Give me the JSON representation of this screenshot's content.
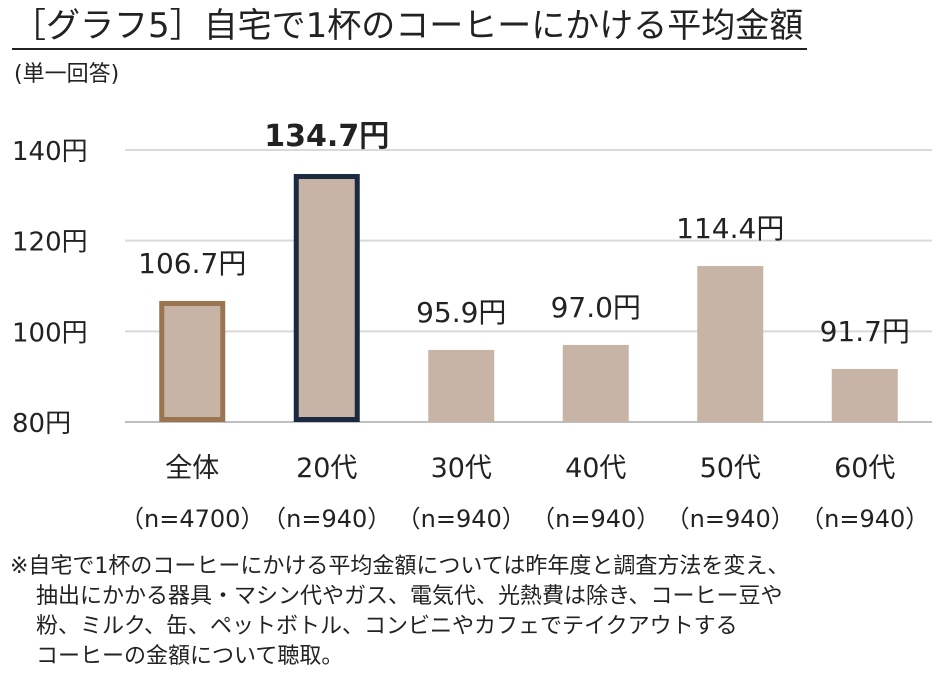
{
  "title": "［グラフ5］自宅で1杯のコーヒーにかける平均金額",
  "subtitle": "(単一回答)",
  "footnote": [
    "※自宅で1杯のコーヒーにかける平均金額については昨年度と調査方法を変え、",
    "抽出にかかる器具・マシン代やガス、電気代、光熱費は除き、コーヒー豆や",
    "粉、ミルク、缶、ペットボトル、コンビニやカフェでテイクアウトする",
    "コーヒーの金額について聴取。"
  ],
  "chart_data": {
    "type": "bar",
    "categories": [
      "全体",
      "20代",
      "30代",
      "40代",
      "50代",
      "60代"
    ],
    "sample_sizes": [
      "（n=4700）",
      "（n=940）",
      "（n=940）",
      "（n=940）",
      "（n=940）",
      "（n=940）"
    ],
    "values": [
      106.7,
      134.7,
      95.9,
      97.0,
      114.4,
      91.7
    ],
    "value_labels": [
      "106.7円",
      "134.7円",
      "95.9円",
      "97.0円",
      "114.4円",
      "91.7円"
    ],
    "y_ticks": [
      80,
      100,
      120,
      140
    ],
    "y_tick_labels": [
      "80円",
      "100円",
      "120円",
      "140円"
    ],
    "ylim": [
      80,
      140
    ],
    "grid": true,
    "bar_color": "#c8b4a6",
    "highlight": [
      {
        "index": 0,
        "border_color": "#9a7550"
      },
      {
        "index": 1,
        "border_color": "#1b2a40",
        "label_bold": true
      }
    ]
  }
}
